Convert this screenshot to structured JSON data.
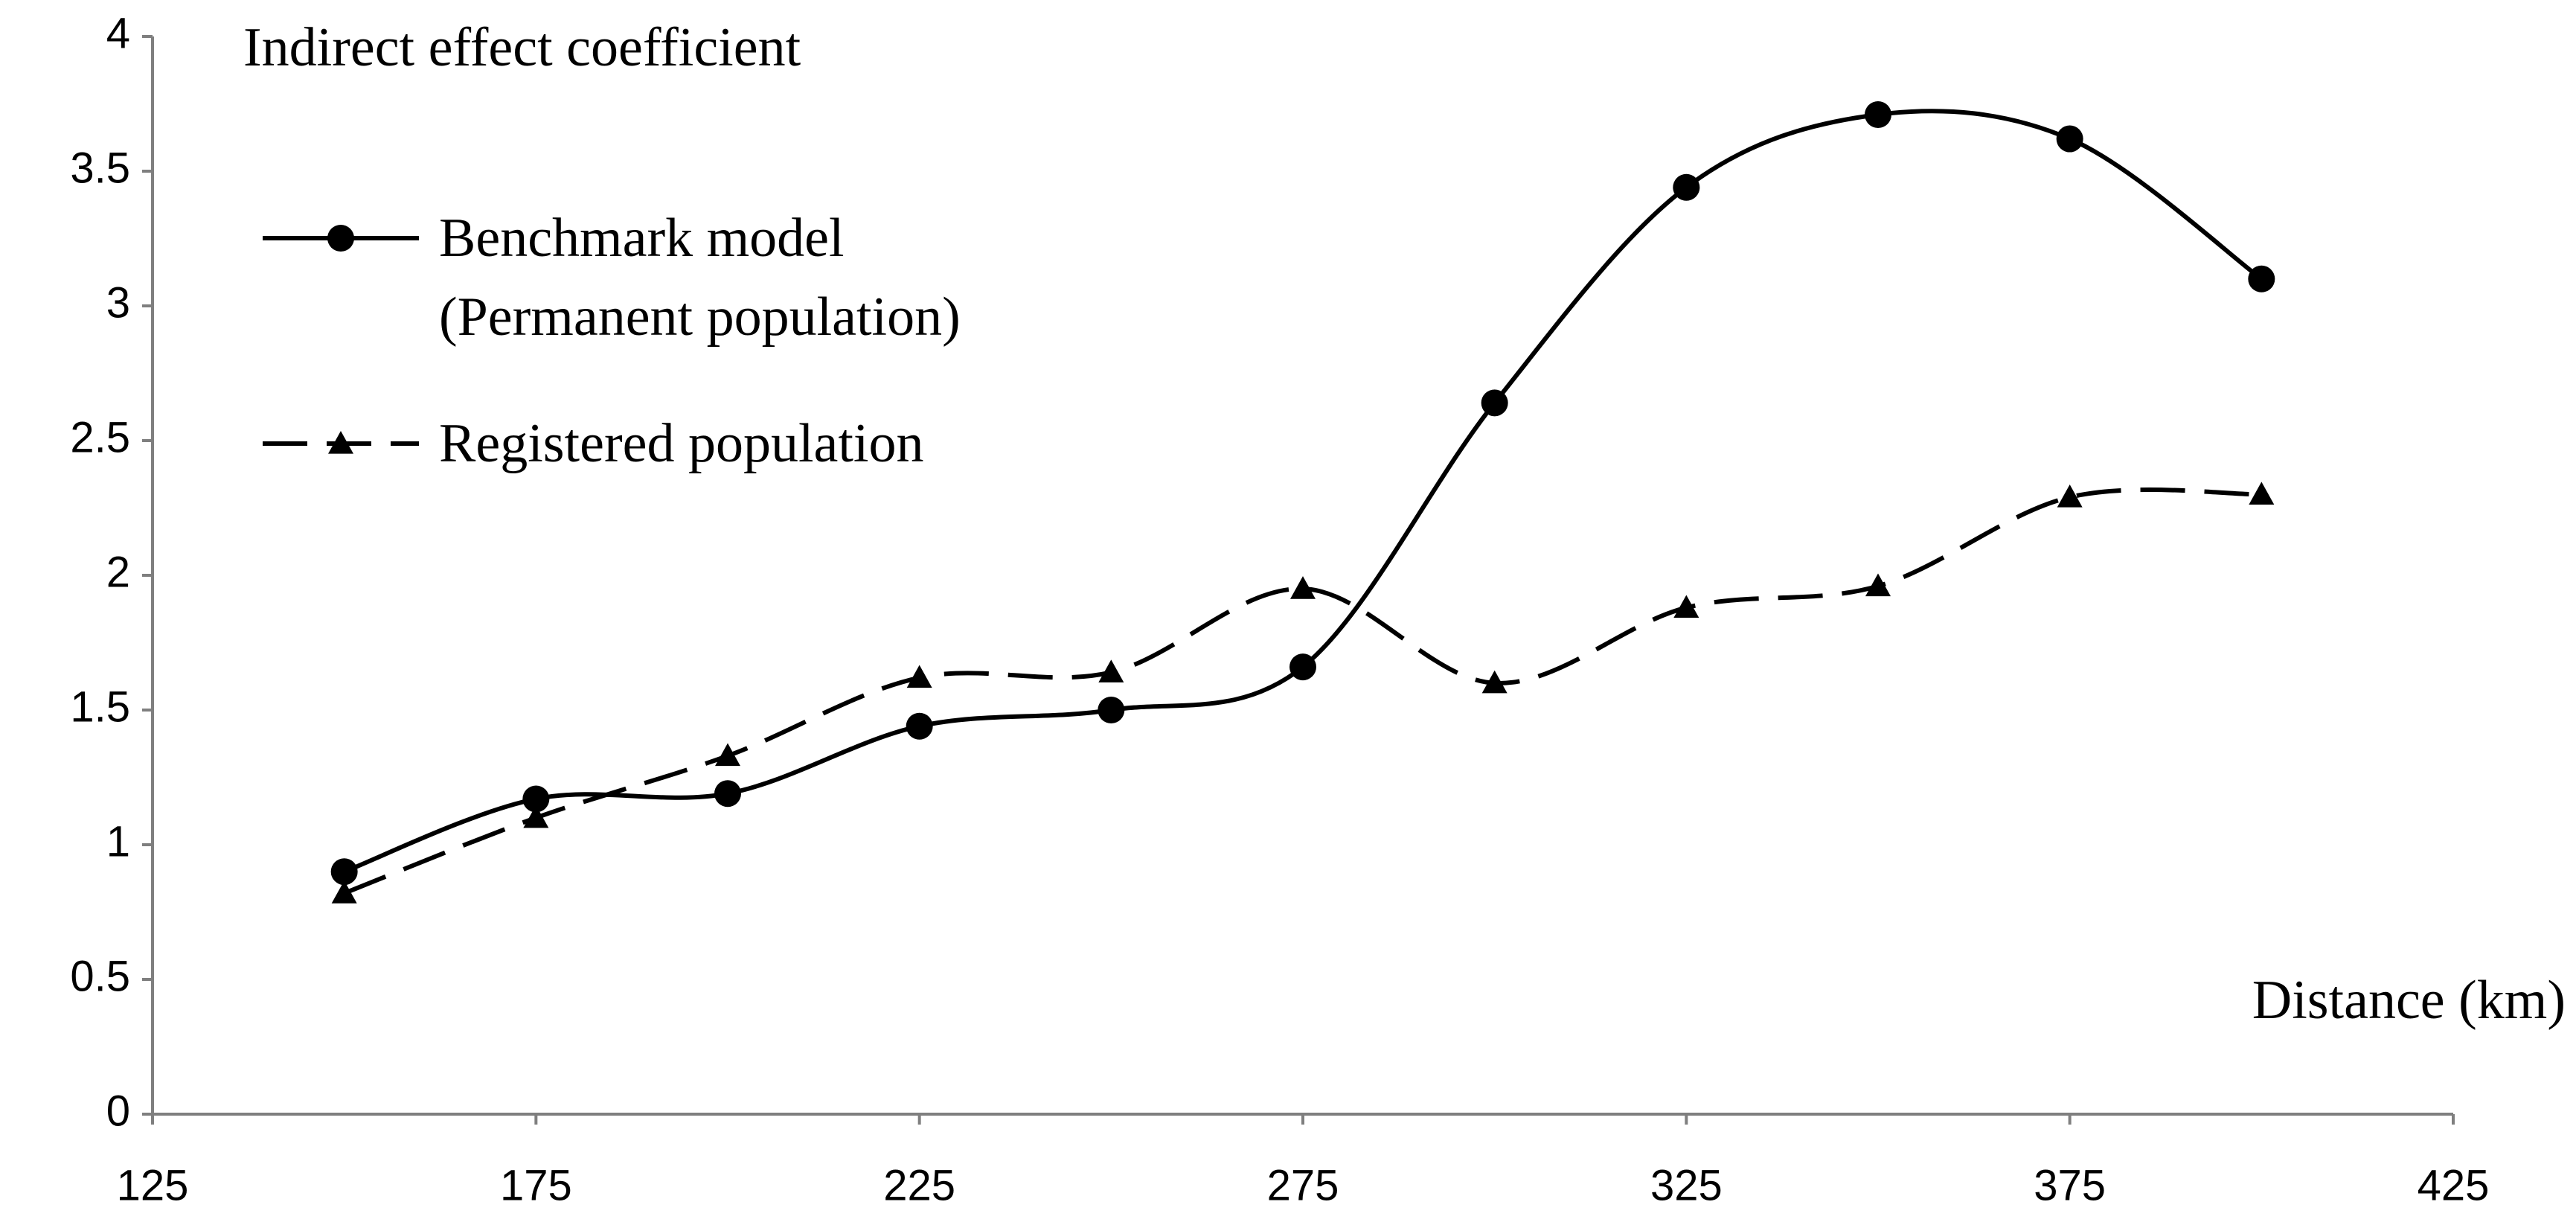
{
  "chart_data": {
    "type": "line",
    "title": "Indirect effect coefficient",
    "x_label": "Distance (km)",
    "x": [
      150,
      175,
      200,
      225,
      250,
      275,
      300,
      325,
      350,
      375,
      400
    ],
    "series": [
      {
        "name": "Benchmark model (Permanent population)",
        "color": "#000000",
        "marker": "circle",
        "dash": "solid",
        "values": [
          0.9,
          1.17,
          1.19,
          1.44,
          1.5,
          1.66,
          2.64,
          3.44,
          3.71,
          3.62,
          3.1
        ]
      },
      {
        "name": "Registered population",
        "color": "#000000",
        "marker": "triangle",
        "dash": "dashed",
        "values": [
          0.82,
          1.1,
          1.33,
          1.62,
          1.64,
          1.95,
          1.6,
          1.88,
          1.96,
          2.29,
          2.3
        ]
      }
    ],
    "xlim": [
      125,
      425
    ],
    "xticks": [
      125,
      175,
      225,
      275,
      325,
      375,
      425
    ],
    "ylim": [
      0,
      4
    ],
    "yticks": [
      0,
      0.5,
      1,
      1.5,
      2,
      2.5,
      3,
      3.5,
      4
    ],
    "smooth": true,
    "grid": false,
    "legend": "upper left"
  }
}
